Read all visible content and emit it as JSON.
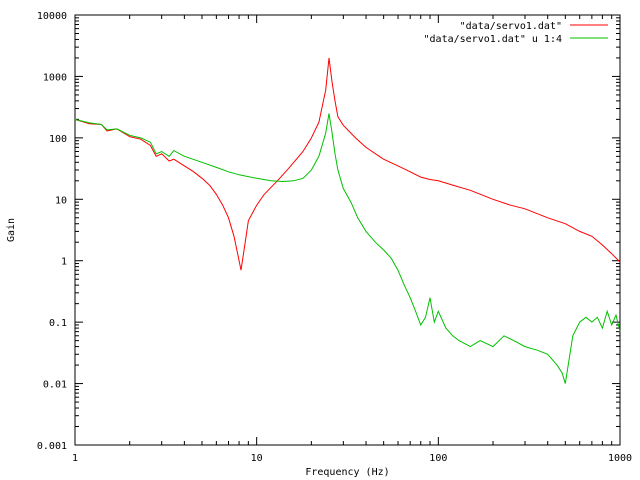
{
  "chart_data": {
    "type": "line",
    "title": "",
    "xlabel": "Frequency (Hz)",
    "ylabel": "Gain",
    "xscale": "log",
    "yscale": "log",
    "xlim": [
      1,
      1000
    ],
    "ylim": [
      0.001,
      10000
    ],
    "x_ticks": [
      "1",
      "10",
      "100",
      "1000"
    ],
    "y_ticks": [
      "0.001",
      "0.01",
      "0.1",
      "1",
      "10",
      "100",
      "1000",
      "10000"
    ],
    "grid": false,
    "legend_position": "top-right",
    "series": [
      {
        "name": "\"data/servo1.dat\"",
        "color": "#ff0000",
        "x": [
          1,
          1.2,
          1.4,
          1.5,
          1.7,
          2,
          2.3,
          2.6,
          2.8,
          3,
          3.3,
          3.5,
          4,
          4.5,
          5,
          5.5,
          6,
          6.5,
          7,
          7.5,
          7.9,
          8.2,
          8.6,
          9,
          10,
          11,
          13,
          15,
          18,
          20,
          22,
          24,
          25,
          26,
          27,
          28,
          30,
          35,
          40,
          50,
          60,
          70,
          80,
          90,
          100,
          120,
          150,
          200,
          250,
          300,
          400,
          500,
          600,
          700,
          800,
          900,
          1000
        ],
        "y": [
          200,
          170,
          165,
          130,
          140,
          105,
          95,
          75,
          50,
          55,
          42,
          45,
          35,
          28,
          22,
          17,
          12,
          8,
          5,
          2.5,
          1.2,
          0.7,
          1.8,
          4.5,
          8,
          12,
          20,
          32,
          60,
          100,
          180,
          600,
          2000,
          800,
          400,
          220,
          160,
          100,
          70,
          45,
          35,
          28,
          23,
          21,
          20,
          17,
          14,
          10,
          8,
          7,
          5,
          4,
          3,
          2.5,
          1.8,
          1.3,
          0.95
        ]
      },
      {
        "name": "\"data/servo1.dat\" u 1:4",
        "color": "#00c000",
        "x": [
          1,
          1.2,
          1.4,
          1.5,
          1.7,
          2,
          2.3,
          2.6,
          2.8,
          3,
          3.3,
          3.5,
          4,
          5,
          6,
          7,
          8,
          10,
          12,
          14,
          16,
          18,
          20,
          22,
          24,
          25,
          26,
          27,
          28,
          30,
          33,
          36,
          40,
          45,
          50,
          55,
          60,
          65,
          70,
          75,
          80,
          85,
          90,
          95,
          100,
          110,
          120,
          130,
          150,
          170,
          200,
          230,
          260,
          300,
          350,
          400,
          450,
          480,
          500,
          550,
          600,
          650,
          700,
          750,
          800,
          850,
          900,
          950,
          1000
        ],
        "y": [
          200,
          175,
          165,
          135,
          140,
          110,
          100,
          85,
          55,
          60,
          50,
          62,
          50,
          40,
          33,
          28,
          25,
          22,
          20,
          19.5,
          20,
          22,
          30,
          50,
          120,
          250,
          120,
          55,
          30,
          15,
          9,
          5,
          3,
          2,
          1.5,
          1.1,
          0.7,
          0.4,
          0.25,
          0.15,
          0.09,
          0.12,
          0.25,
          0.1,
          0.15,
          0.08,
          0.06,
          0.05,
          0.04,
          0.05,
          0.04,
          0.06,
          0.05,
          0.04,
          0.035,
          0.03,
          0.02,
          0.015,
          0.01,
          0.06,
          0.1,
          0.12,
          0.1,
          0.12,
          0.08,
          0.15,
          0.09,
          0.13,
          0.07
        ]
      }
    ]
  }
}
